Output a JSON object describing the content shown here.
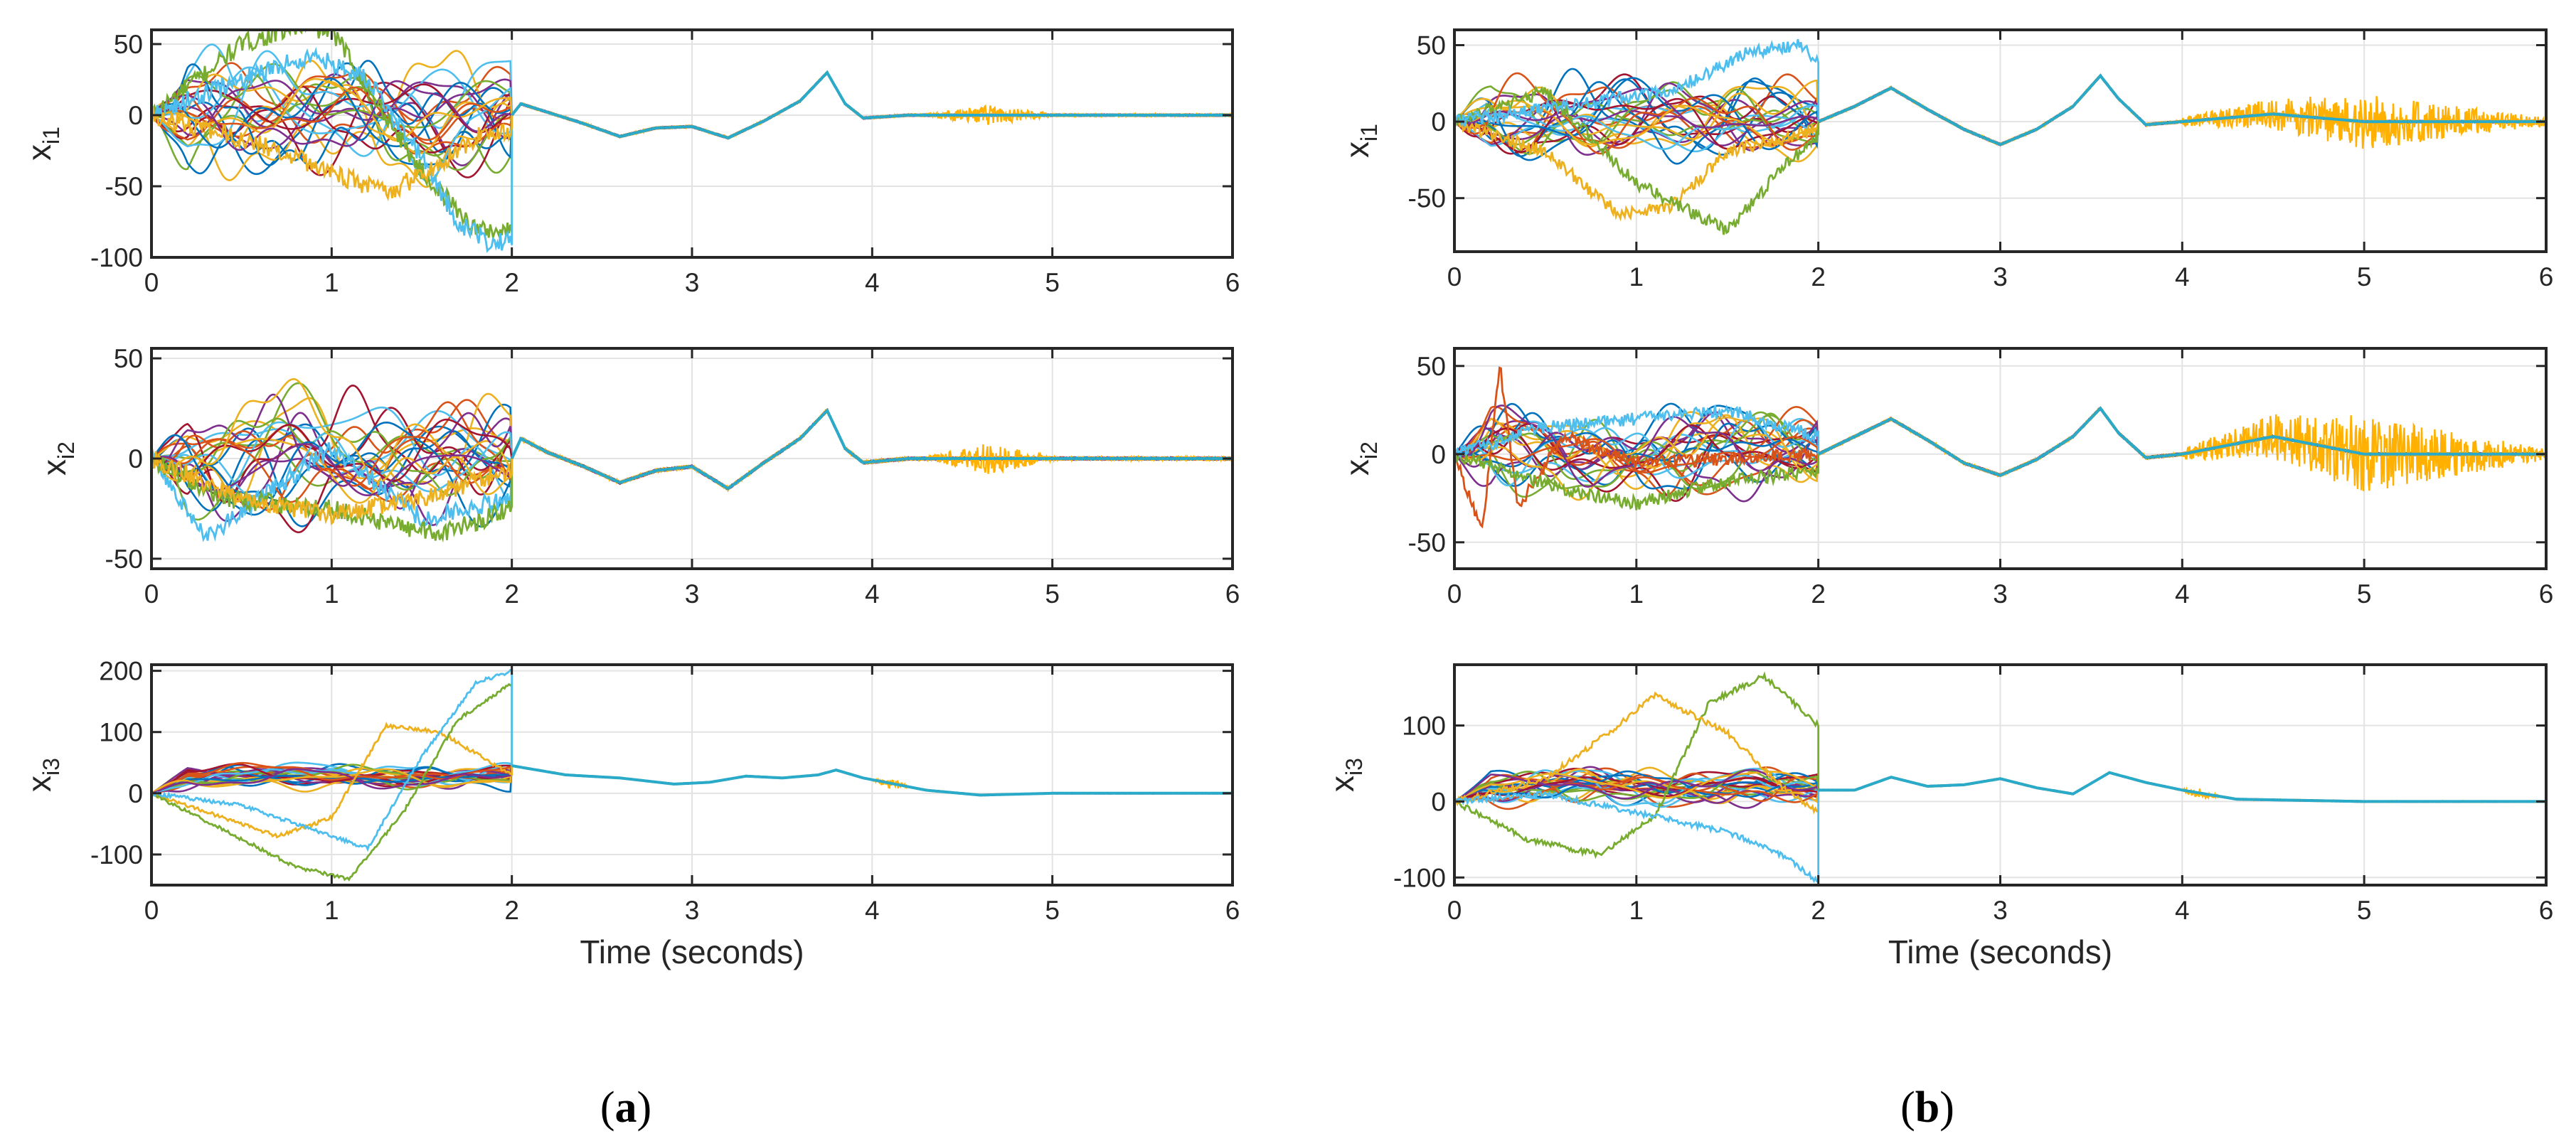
{
  "figure": {
    "panel_captions": [
      {
        "open": "(",
        "letter": "a",
        "close": ")"
      },
      {
        "open": "(",
        "letter": "b",
        "close": ")"
      }
    ]
  },
  "chart_data": [
    {
      "type": "line",
      "panel": "a",
      "title": "",
      "xlabel": "",
      "ylabel": {
        "base": "x",
        "sub": "i1"
      },
      "xlim": [
        0,
        6
      ],
      "ylim": [
        -100,
        60
      ],
      "xticks": [
        0,
        1,
        2,
        3,
        4,
        5,
        6
      ],
      "yticks": [
        -100,
        -50,
        0,
        50
      ],
      "grid": true,
      "consensus_curve": [
        [
          2.0,
          0
        ],
        [
          2.05,
          8
        ],
        [
          2.2,
          2
        ],
        [
          2.4,
          -6
        ],
        [
          2.6,
          -15
        ],
        [
          2.8,
          -9
        ],
        [
          3.0,
          -8
        ],
        [
          3.2,
          -16
        ],
        [
          3.4,
          -4
        ],
        [
          3.6,
          10
        ],
        [
          3.75,
          30
        ],
        [
          3.85,
          8
        ],
        [
          3.95,
          -2
        ],
        [
          4.2,
          0
        ],
        [
          5,
          0
        ],
        [
          6,
          0
        ]
      ],
      "consensus_amp": 55,
      "transient_end": 2.0,
      "series_count": 25,
      "highlight_series": [
        {
          "name": "green",
          "values": [
            [
              0,
              0
            ],
            [
              0.5,
              50
            ],
            [
              0.8,
              62
            ],
            [
              1.0,
              60
            ],
            [
              1.2,
              20
            ],
            [
              1.5,
              -40
            ],
            [
              1.8,
              -80
            ],
            [
              2.0,
              -82
            ]
          ]
        },
        {
          "name": "cyan",
          "values": [
            [
              0,
              0
            ],
            [
              0.5,
              25
            ],
            [
              0.9,
              42
            ],
            [
              1.2,
              25
            ],
            [
              1.5,
              -30
            ],
            [
              1.7,
              -75
            ],
            [
              1.9,
              -92
            ],
            [
              2.0,
              -85
            ]
          ]
        },
        {
          "name": "yellow",
          "values": [
            [
              0,
              0
            ],
            [
              0.6,
              -20
            ],
            [
              1.0,
              -40
            ],
            [
              1.3,
              -55
            ],
            [
              1.6,
              -35
            ],
            [
              1.8,
              -15
            ],
            [
              2.0,
              -10
            ]
          ]
        }
      ],
      "noise_window": [
        4.3,
        5.0
      ],
      "noise_amp": 7,
      "series_colors": [
        "#0072BD",
        "#D95319",
        "#EDB120",
        "#7E2F8E",
        "#77AC30",
        "#4DBEEE",
        "#A2142F"
      ]
    },
    {
      "type": "line",
      "panel": "a",
      "xlabel": "",
      "ylabel": {
        "base": "x",
        "sub": "i2"
      },
      "xlim": [
        0,
        6
      ],
      "ylim": [
        -55,
        55
      ],
      "xticks": [
        0,
        1,
        2,
        3,
        4,
        5,
        6
      ],
      "yticks": [
        -50,
        0,
        50
      ],
      "grid": true,
      "consensus_curve": [
        [
          2.0,
          0
        ],
        [
          2.05,
          10
        ],
        [
          2.2,
          3
        ],
        [
          2.4,
          -4
        ],
        [
          2.6,
          -12
        ],
        [
          2.8,
          -6
        ],
        [
          3.0,
          -4
        ],
        [
          3.2,
          -15
        ],
        [
          3.4,
          -2
        ],
        [
          3.6,
          10
        ],
        [
          3.75,
          24
        ],
        [
          3.85,
          5
        ],
        [
          3.95,
          -2
        ],
        [
          4.2,
          0
        ],
        [
          5,
          0
        ],
        [
          6,
          0
        ]
      ],
      "consensus_amp": 38,
      "transient_end": 2.0,
      "series_count": 25,
      "highlight_series": [
        {
          "name": "cyan",
          "values": [
            [
              0,
              0
            ],
            [
              0.3,
              -40
            ],
            [
              0.6,
              -20
            ],
            [
              1.0,
              5
            ],
            [
              1.5,
              -30
            ],
            [
              2.0,
              -20
            ]
          ]
        },
        {
          "name": "green",
          "values": [
            [
              0,
              0
            ],
            [
              0.4,
              -20
            ],
            [
              1.0,
              -25
            ],
            [
              1.6,
              -38
            ],
            [
              2.0,
              -25
            ]
          ]
        },
        {
          "name": "yellow",
          "values": [
            [
              0,
              0
            ],
            [
              0.5,
              -20
            ],
            [
              1.0,
              -28
            ],
            [
              1.5,
              -20
            ],
            [
              2.0,
              -5
            ]
          ]
        }
      ],
      "noise_window": [
        4.3,
        5.0
      ],
      "noise_amp": 8,
      "series_colors": [
        "#0072BD",
        "#D95319",
        "#EDB120",
        "#7E2F8E",
        "#77AC30",
        "#4DBEEE",
        "#A2142F"
      ]
    },
    {
      "type": "line",
      "panel": "a",
      "xlabel": "Time (seconds)",
      "ylabel": {
        "base": "x",
        "sub": "i3"
      },
      "xlim": [
        0,
        6
      ],
      "ylim": [
        -150,
        210
      ],
      "xticks": [
        0,
        1,
        2,
        3,
        4,
        5,
        6
      ],
      "yticks": [
        -100,
        0,
        100,
        200
      ],
      "grid": true,
      "consensus_curve": [
        [
          2.0,
          45
        ],
        [
          2.3,
          30
        ],
        [
          2.6,
          25
        ],
        [
          2.9,
          15
        ],
        [
          3.1,
          18
        ],
        [
          3.3,
          28
        ],
        [
          3.5,
          25
        ],
        [
          3.7,
          30
        ],
        [
          3.8,
          38
        ],
        [
          3.95,
          25
        ],
        [
          4.3,
          5
        ],
        [
          4.6,
          -3
        ],
        [
          5,
          0
        ],
        [
          6,
          0
        ]
      ],
      "consensus_amp": 25,
      "consensus_center": 28,
      "transient_end": 2.0,
      "series_count": 25,
      "highlight_series": [
        {
          "name": "yellow",
          "values": [
            [
              0,
              0
            ],
            [
              0.3,
              -30
            ],
            [
              0.7,
              -70
            ],
            [
              1.0,
              -40
            ],
            [
              1.3,
              110
            ],
            [
              1.6,
              100
            ],
            [
              2.0,
              30
            ]
          ]
        },
        {
          "name": "green",
          "values": [
            [
              0,
              0
            ],
            [
              0.4,
              -60
            ],
            [
              0.8,
              -120
            ],
            [
              1.1,
              -140
            ],
            [
              1.4,
              -30
            ],
            [
              1.7,
              120
            ],
            [
              2.0,
              180
            ]
          ]
        },
        {
          "name": "cyan",
          "values": [
            [
              0,
              0
            ],
            [
              0.5,
              -20
            ],
            [
              0.9,
              -60
            ],
            [
              1.2,
              -90
            ],
            [
              1.5,
              60
            ],
            [
              1.8,
              180
            ],
            [
              2.0,
              200
            ]
          ]
        }
      ],
      "noise_window": [
        4.0,
        4.2
      ],
      "noise_amp": 10,
      "series_colors": [
        "#0072BD",
        "#D95319",
        "#EDB120",
        "#7E2F8E",
        "#77AC30",
        "#4DBEEE",
        "#A2142F"
      ]
    },
    {
      "type": "line",
      "panel": "b",
      "xlabel": "",
      "ylabel": {
        "base": "x",
        "sub": "i1"
      },
      "xlim": [
        0,
        6
      ],
      "ylim": [
        -85,
        60
      ],
      "xticks": [
        0,
        1,
        2,
        3,
        4,
        5,
        6
      ],
      "yticks": [
        -50,
        0,
        50
      ],
      "grid": true,
      "consensus_curve": [
        [
          2.0,
          0
        ],
        [
          2.2,
          10
        ],
        [
          2.4,
          22
        ],
        [
          2.6,
          8
        ],
        [
          2.8,
          -5
        ],
        [
          3.0,
          -15
        ],
        [
          3.2,
          -5
        ],
        [
          3.4,
          10
        ],
        [
          3.55,
          30
        ],
        [
          3.65,
          15
        ],
        [
          3.8,
          -2
        ],
        [
          4.0,
          0
        ],
        [
          4.5,
          5
        ],
        [
          5,
          0
        ],
        [
          6,
          0
        ]
      ],
      "consensus_amp": 35,
      "transient_end": 2.0,
      "series_count": 25,
      "highlight_series": [
        {
          "name": "yellow",
          "values": [
            [
              0,
              0
            ],
            [
              0.5,
              -20
            ],
            [
              0.9,
              -60
            ],
            [
              1.2,
              -55
            ],
            [
              1.5,
              -20
            ],
            [
              2.0,
              -5
            ]
          ]
        },
        {
          "name": "green",
          "values": [
            [
              0,
              0
            ],
            [
              0.5,
              20
            ],
            [
              1.0,
              -40
            ],
            [
              1.5,
              -72
            ],
            [
              1.8,
              -30
            ],
            [
              2.0,
              -10
            ]
          ]
        },
        {
          "name": "cyan",
          "values": [
            [
              0,
              0
            ],
            [
              0.6,
              10
            ],
            [
              1.2,
              20
            ],
            [
              1.6,
              45
            ],
            [
              1.9,
              50
            ],
            [
              2.0,
              40
            ]
          ]
        }
      ],
      "noise_window": [
        4.0,
        6.0
      ],
      "noise_amp": 18,
      "series_colors": [
        "#0072BD",
        "#D95319",
        "#EDB120",
        "#7E2F8E",
        "#77AC30",
        "#4DBEEE",
        "#A2142F"
      ]
    },
    {
      "type": "line",
      "panel": "b",
      "xlabel": "",
      "ylabel": {
        "base": "x",
        "sub": "i2"
      },
      "xlim": [
        0,
        6
      ],
      "ylim": [
        -65,
        60
      ],
      "xticks": [
        0,
        1,
        2,
        3,
        4,
        5,
        6
      ],
      "yticks": [
        -50,
        0,
        50
      ],
      "grid": true,
      "consensus_curve": [
        [
          2.0,
          0
        ],
        [
          2.2,
          10
        ],
        [
          2.4,
          20
        ],
        [
          2.6,
          8
        ],
        [
          2.8,
          -5
        ],
        [
          3.0,
          -12
        ],
        [
          3.2,
          -3
        ],
        [
          3.4,
          10
        ],
        [
          3.55,
          26
        ],
        [
          3.65,
          12
        ],
        [
          3.8,
          -2
        ],
        [
          4.0,
          0
        ],
        [
          4.5,
          10
        ],
        [
          5,
          0
        ],
        [
          6,
          0
        ]
      ],
      "consensus_amp": 30,
      "transient_end": 2.0,
      "series_count": 25,
      "highlight_series": [
        {
          "name": "red",
          "values": [
            [
              0,
              0
            ],
            [
              0.15,
              -45
            ],
            [
              0.25,
              50
            ],
            [
              0.35,
              -30
            ],
            [
              0.6,
              10
            ],
            [
              1.0,
              -5
            ],
            [
              2.0,
              0
            ]
          ]
        },
        {
          "name": "green",
          "values": [
            [
              0,
              0
            ],
            [
              0.6,
              -20
            ],
            [
              1.0,
              -28
            ],
            [
              1.5,
              -15
            ],
            [
              2.0,
              -10
            ]
          ]
        },
        {
          "name": "cyan",
          "values": [
            [
              0,
              0
            ],
            [
              0.5,
              15
            ],
            [
              1.0,
              20
            ],
            [
              1.5,
              25
            ],
            [
              2.0,
              10
            ]
          ]
        }
      ],
      "noise_window": [
        4.0,
        6.0
      ],
      "noise_amp": 22,
      "series_colors": [
        "#0072BD",
        "#D95319",
        "#EDB120",
        "#7E2F8E",
        "#77AC30",
        "#4DBEEE",
        "#A2142F"
      ]
    },
    {
      "type": "line",
      "panel": "b",
      "xlabel": "Time (seconds)",
      "ylabel": {
        "base": "x",
        "sub": "i3"
      },
      "xlim": [
        0,
        6
      ],
      "ylim": [
        -110,
        180
      ],
      "xticks": [
        0,
        1,
        2,
        3,
        4,
        5,
        6
      ],
      "yticks": [
        -100,
        0,
        100
      ],
      "grid": true,
      "consensus_curve": [
        [
          2.0,
          15
        ],
        [
          2.2,
          15
        ],
        [
          2.4,
          32
        ],
        [
          2.6,
          20
        ],
        [
          2.8,
          22
        ],
        [
          3.0,
          30
        ],
        [
          3.2,
          18
        ],
        [
          3.4,
          10
        ],
        [
          3.6,
          38
        ],
        [
          3.8,
          25
        ],
        [
          4.0,
          15
        ],
        [
          4.3,
          3
        ],
        [
          5,
          0
        ],
        [
          6,
          0
        ]
      ],
      "consensus_amp": 30,
      "consensus_center": 20,
      "transient_end": 2.0,
      "series_count": 25,
      "highlight_series": [
        {
          "name": "green",
          "values": [
            [
              0,
              0
            ],
            [
              0.4,
              -50
            ],
            [
              0.8,
              -70
            ],
            [
              1.1,
              -20
            ],
            [
              1.4,
              130
            ],
            [
              1.7,
              165
            ],
            [
              2.0,
              100
            ]
          ]
        },
        {
          "name": "yellow",
          "values": [
            [
              0,
              0
            ],
            [
              0.5,
              30
            ],
            [
              0.9,
              100
            ],
            [
              1.1,
              140
            ],
            [
              1.5,
              90
            ],
            [
              1.8,
              20
            ],
            [
              2.0,
              -15
            ]
          ]
        },
        {
          "name": "cyan",
          "values": [
            [
              0,
              0
            ],
            [
              0.5,
              10
            ],
            [
              1.0,
              -15
            ],
            [
              1.5,
              -40
            ],
            [
              1.8,
              -70
            ],
            [
              2.0,
              -105
            ]
          ]
        }
      ],
      "noise_window": [
        4.0,
        4.2
      ],
      "noise_amp": 8,
      "series_colors": [
        "#0072BD",
        "#D95319",
        "#EDB120",
        "#7E2F8E",
        "#77AC30",
        "#4DBEEE",
        "#A2142F"
      ]
    }
  ]
}
